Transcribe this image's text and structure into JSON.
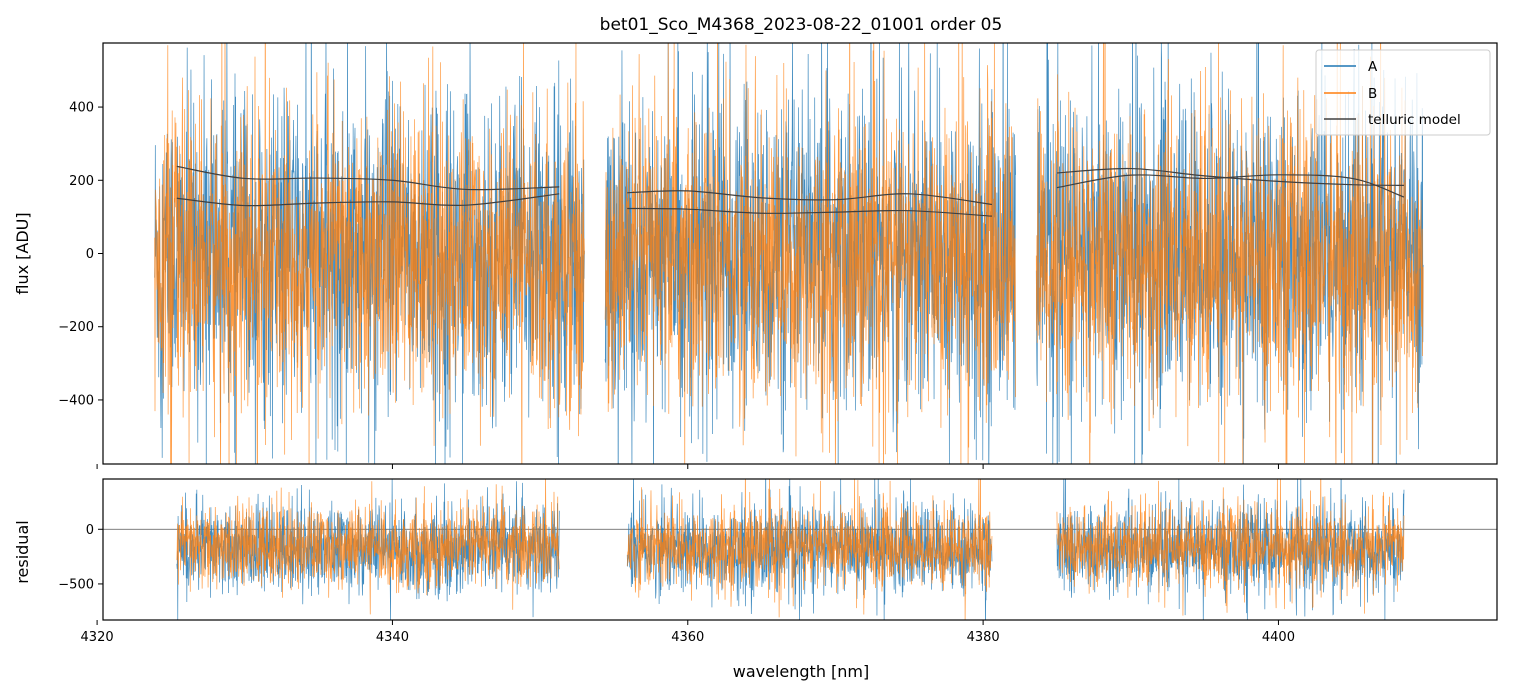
{
  "chart_data": [
    {
      "type": "line",
      "title": "bet01_Sco_M4368_2023-08-22_01001  order 05",
      "ylabel": "flux [ADU]",
      "xlim": [
        4320.4,
        4414.8
      ],
      "ylim": [
        -575,
        575
      ],
      "yticks": [
        -400,
        -200,
        0,
        200,
        400
      ],
      "yticklabels": [
        "−400",
        "−200",
        "0",
        "200",
        "400"
      ],
      "xticks": [
        4320,
        4340,
        4360,
        4380,
        4400
      ],
      "legend_position": "top-right",
      "segments": [
        {
          "x": [
            4323.9,
            4353.0
          ]
        },
        {
          "x": [
            4354.4,
            4382.2
          ]
        },
        {
          "x": [
            4383.6,
            4409.8
          ]
        }
      ],
      "series": [
        {
          "name": "A",
          "color": "#1f77b4",
          "center": 0,
          "amplitude": 560
        },
        {
          "name": "B",
          "color": "#ff7f0e",
          "center": -20,
          "amplitude": 520
        },
        {
          "name": "telluric model",
          "color": "#404040",
          "curves": [
            {
              "x": [
                4325.4,
                4330,
                4335,
                4340,
                4345,
                4351.3
              ],
              "y": [
                238,
                205,
                206,
                200,
                175,
                182
              ]
            },
            {
              "x": [
                4325.4,
                4330,
                4335,
                4340,
                4345,
                4351.3
              ],
              "y": [
                151,
                131,
                138,
                141,
                132,
                163
              ]
            },
            {
              "x": [
                4355.9,
                4360,
                4365,
                4370,
                4375,
                4380.6
              ],
              "y": [
                166,
                171,
                152,
                147,
                163,
                134
              ]
            },
            {
              "x": [
                4355.9,
                4360,
                4365,
                4370,
                4375,
                4380.6
              ],
              "y": [
                123,
                121,
                110,
                113,
                117,
                102
              ]
            },
            {
              "x": [
                4385.0,
                4390,
                4395,
                4400,
                4405,
                4408.5
              ],
              "y": [
                220,
                232,
                212,
                197,
                188,
                186
              ]
            },
            {
              "x": [
                4385.0,
                4390,
                4395,
                4400,
                4405,
                4408.5
              ],
              "y": [
                180,
                214,
                205,
                215,
                205,
                154
              ]
            }
          ]
        }
      ]
    },
    {
      "type": "line",
      "ylabel": "residual",
      "xlabel": "wavelength [nm]",
      "xlim": [
        4320.4,
        4414.8
      ],
      "ylim": [
        -830,
        460
      ],
      "yticks": [
        -500,
        0
      ],
      "yticklabels": [
        "−500",
        "0"
      ],
      "xticks": [
        4320,
        4340,
        4360,
        4380,
        4400
      ],
      "xticklabels": [
        "4320",
        "4340",
        "4360",
        "4380",
        "4400"
      ],
      "zero_line": 0,
      "segments": [
        {
          "x": [
            4325.4,
            4351.3
          ]
        },
        {
          "x": [
            4355.9,
            4380.6
          ]
        },
        {
          "x": [
            4385.0,
            4408.5
          ]
        }
      ],
      "series": [
        {
          "name": "A",
          "color": "#1f77b4",
          "center": -180,
          "amplitude": 520
        },
        {
          "name": "B",
          "color": "#ff7f0e",
          "center": -160,
          "amplitude": 480
        }
      ]
    }
  ]
}
